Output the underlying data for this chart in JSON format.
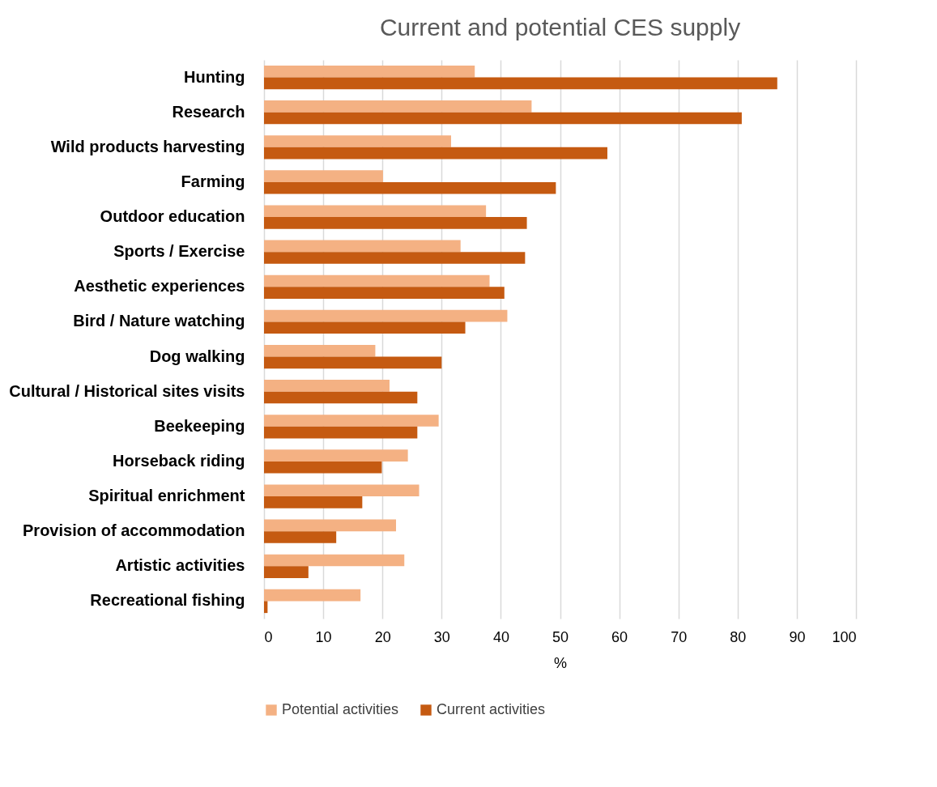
{
  "chart_data": {
    "type": "bar",
    "orientation": "horizontal",
    "title": "Current and potential CES supply",
    "xlabel": "%",
    "categories": [
      "Hunting",
      "Research",
      "Wild products harvesting",
      "Farming",
      "Outdoor education",
      "Sports / Exercise",
      "Aesthetic experiences",
      "Bird / Nature watching",
      "Dog walking",
      "Cultural / Historical sites visits",
      "Beekeeping",
      "Horseback riding",
      "Spiritual enrichment",
      "Provision of accommodation",
      "Artistic activities",
      "Recreational fishing"
    ],
    "series": [
      {
        "name": "Potential activities",
        "color": "#f4b183",
        "values": [
          35.6,
          45.2,
          31.6,
          20.1,
          37.5,
          33.2,
          38.1,
          41.1,
          18.8,
          21.2,
          29.5,
          24.3,
          26.2,
          22.3,
          23.7,
          16.3
        ]
      },
      {
        "name": "Current activities",
        "color": "#c55a11",
        "values": [
          86.7,
          80.7,
          58.0,
          49.3,
          44.4,
          44.1,
          40.6,
          34.0,
          30.0,
          25.9,
          25.9,
          19.9,
          16.6,
          12.2,
          7.5,
          0.6
        ]
      }
    ],
    "xlim": [
      0,
      100
    ],
    "xticks": [
      0,
      10,
      20,
      30,
      40,
      50,
      60,
      70,
      80,
      90,
      100
    ],
    "grid": "x",
    "legend": "bottom"
  }
}
